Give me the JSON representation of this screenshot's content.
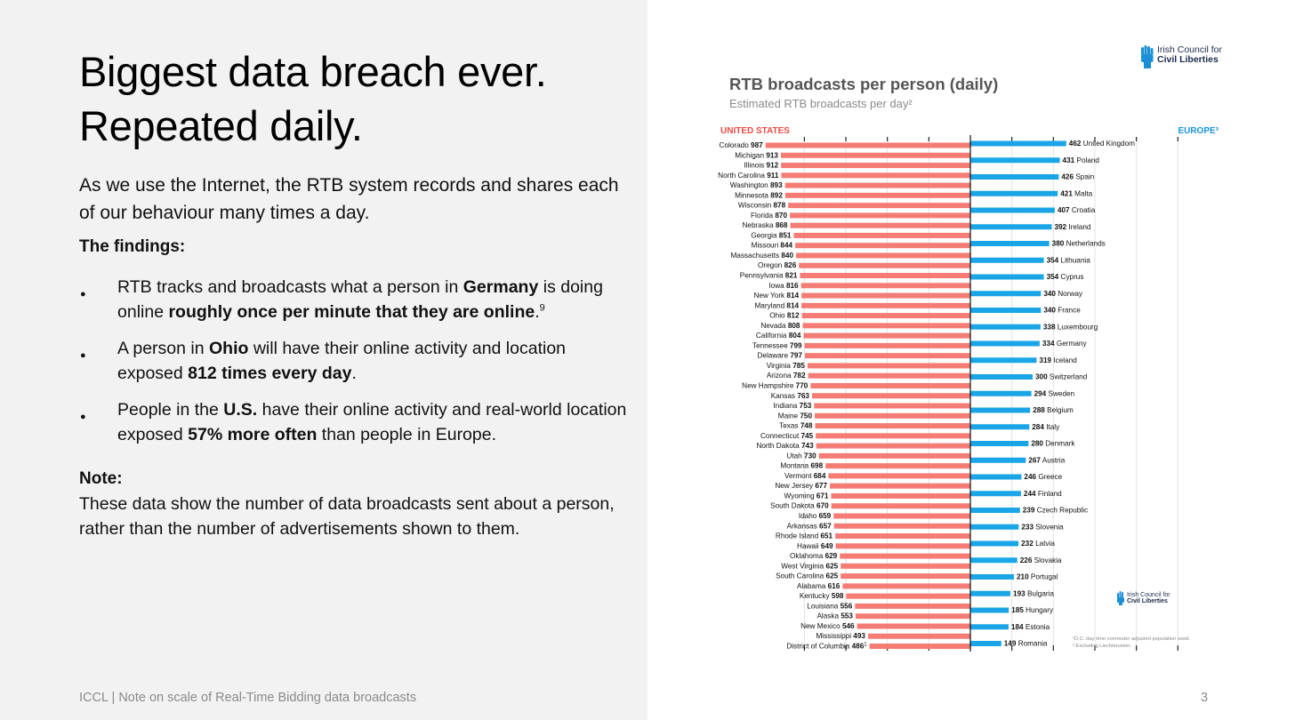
{
  "slide": {
    "title_line1": "Biggest data breach ever.",
    "title_line2": "Repeated daily.",
    "intro": "As we use the Internet, the RTB system records and shares each of our behaviour many times a day.",
    "findings_heading": "The findings:",
    "bullets": [
      {
        "parts": [
          {
            "t": "RTB tracks and broadcasts what a person in "
          },
          {
            "t": "Germany",
            "b": true
          },
          {
            "t": " is doing online "
          },
          {
            "t": "roughly once per minute that they are online",
            "b": true
          },
          {
            "t": "."
          },
          {
            "t": "9",
            "sup": true
          }
        ]
      },
      {
        "parts": [
          {
            "t": "A person in "
          },
          {
            "t": "Ohio",
            "b": true
          },
          {
            "t": " will have their online activity and location exposed "
          },
          {
            "t": "812 times every day",
            "b": true
          },
          {
            "t": "."
          }
        ]
      },
      {
        "parts": [
          {
            "t": "People in the "
          },
          {
            "t": "U.S.",
            "b": true
          },
          {
            "t": " have their online activity and real-world location exposed "
          },
          {
            "t": "57% more often",
            "b": true
          },
          {
            "t": " than people in Europe."
          }
        ]
      }
    ],
    "note_heading": "Note:",
    "note_text": "These data show the number of data broadcasts sent about a person, rather than the number of advertisements shown to them.",
    "footer": "ICCL | Note on scale of Real-Time Bidding data broadcasts",
    "page_number": "3"
  },
  "logo": {
    "line1": "Irish Council for",
    "line2": "Civil Liberties"
  },
  "chart_data": {
    "type": "bar",
    "title": "RTB broadcasts per person (daily)",
    "subtitle": "Estimated RTB broadcasts per day²",
    "left_label": "UNITED STATES",
    "right_label": "EUROPE³",
    "us": [
      {
        "name": "Colorado",
        "value": 987
      },
      {
        "name": "Michigan",
        "value": 913
      },
      {
        "name": "Illinois",
        "value": 912
      },
      {
        "name": "North Carolina",
        "value": 911
      },
      {
        "name": "Washington",
        "value": 893
      },
      {
        "name": "Minnesota",
        "value": 892
      },
      {
        "name": "Wisconsin",
        "value": 878
      },
      {
        "name": "Florida",
        "value": 870
      },
      {
        "name": "Nebraska",
        "value": 868
      },
      {
        "name": "Georgia",
        "value": 851
      },
      {
        "name": "Missouri",
        "value": 844
      },
      {
        "name": "Massachusetts",
        "value": 840
      },
      {
        "name": "Oregon",
        "value": 826
      },
      {
        "name": "Pennsylvania",
        "value": 821
      },
      {
        "name": "Iowa",
        "value": 816
      },
      {
        "name": "New York",
        "value": 814
      },
      {
        "name": "Maryland",
        "value": 814
      },
      {
        "name": "Ohio",
        "value": 812
      },
      {
        "name": "Nevada",
        "value": 808
      },
      {
        "name": "California",
        "value": 804
      },
      {
        "name": "Tennessee",
        "value": 799
      },
      {
        "name": "Delaware",
        "value": 797
      },
      {
        "name": "Virginia",
        "value": 785
      },
      {
        "name": "Arizona",
        "value": 782
      },
      {
        "name": "New Hampshire",
        "value": 770
      },
      {
        "name": "Kansas",
        "value": 763
      },
      {
        "name": "Indiana",
        "value": 753
      },
      {
        "name": "Maine",
        "value": 750
      },
      {
        "name": "Texas",
        "value": 748
      },
      {
        "name": "Connecticut",
        "value": 745
      },
      {
        "name": "North Dakota",
        "value": 743
      },
      {
        "name": "Utah",
        "value": 730
      },
      {
        "name": "Montana",
        "value": 698
      },
      {
        "name": "Vermont",
        "value": 684
      },
      {
        "name": "New Jersey",
        "value": 677
      },
      {
        "name": "Wyoming",
        "value": 671
      },
      {
        "name": "South Dakota",
        "value": 670
      },
      {
        "name": "Idaho",
        "value": 659
      },
      {
        "name": "Arkansas",
        "value": 657
      },
      {
        "name": "Rhode Island",
        "value": 651
      },
      {
        "name": "Hawaii",
        "value": 649
      },
      {
        "name": "Oklahoma",
        "value": 629
      },
      {
        "name": "West Virginia",
        "value": 625
      },
      {
        "name": "South Carolina",
        "value": 625
      },
      {
        "name": "Alabama",
        "value": 616
      },
      {
        "name": "Kentucky",
        "value": 598
      },
      {
        "name": "Louisiana",
        "value": 556
      },
      {
        "name": "Alaska",
        "value": 553
      },
      {
        "name": "New Mexico",
        "value": 546
      },
      {
        "name": "Mississippi",
        "value": 493
      },
      {
        "name": "District of Columbia",
        "value": 486,
        "mark": "1"
      }
    ],
    "europe": [
      {
        "name": "United Kingdom",
        "value": 462
      },
      {
        "name": "Poland",
        "value": 431
      },
      {
        "name": "Spain",
        "value": 426
      },
      {
        "name": "Malta",
        "value": 421
      },
      {
        "name": "Croatia",
        "value": 407
      },
      {
        "name": "Ireland",
        "value": 392
      },
      {
        "name": "Netherlands",
        "value": 380
      },
      {
        "name": "Lithuania",
        "value": 354
      },
      {
        "name": "Cyprus",
        "value": 354
      },
      {
        "name": "Norway",
        "value": 340
      },
      {
        "name": "France",
        "value": 340
      },
      {
        "name": "Luxembourg",
        "value": 338
      },
      {
        "name": "Germany",
        "value": 334
      },
      {
        "name": "Iceland",
        "value": 319
      },
      {
        "name": "Switzerland",
        "value": 300
      },
      {
        "name": "Sweden",
        "value": 294
      },
      {
        "name": "Belgium",
        "value": 288
      },
      {
        "name": "Italy",
        "value": 284
      },
      {
        "name": "Denmark",
        "value": 280
      },
      {
        "name": "Austria",
        "value": 267
      },
      {
        "name": "Greece",
        "value": 246
      },
      {
        "name": "Finland",
        "value": 244
      },
      {
        "name": "Czech Republic",
        "value": 239
      },
      {
        "name": "Slovenia",
        "value": 233
      },
      {
        "name": "Latvia",
        "value": 232
      },
      {
        "name": "Slovakia",
        "value": 226
      },
      {
        "name": "Portugal",
        "value": 210
      },
      {
        "name": "Bulgaria",
        "value": 193
      },
      {
        "name": "Hungary",
        "value": 185
      },
      {
        "name": "Estonia",
        "value": 184
      },
      {
        "name": "Romania",
        "value": 149
      }
    ],
    "footnotes": [
      "¹D.C. day time commuter adjusted population used.",
      "³ Excluding Liechtenstein."
    ],
    "colors": {
      "us": "#f47c75",
      "europe": "#1aa5e6",
      "us_label": "#ea4b45",
      "europe_label": "#1a94d9"
    }
  }
}
